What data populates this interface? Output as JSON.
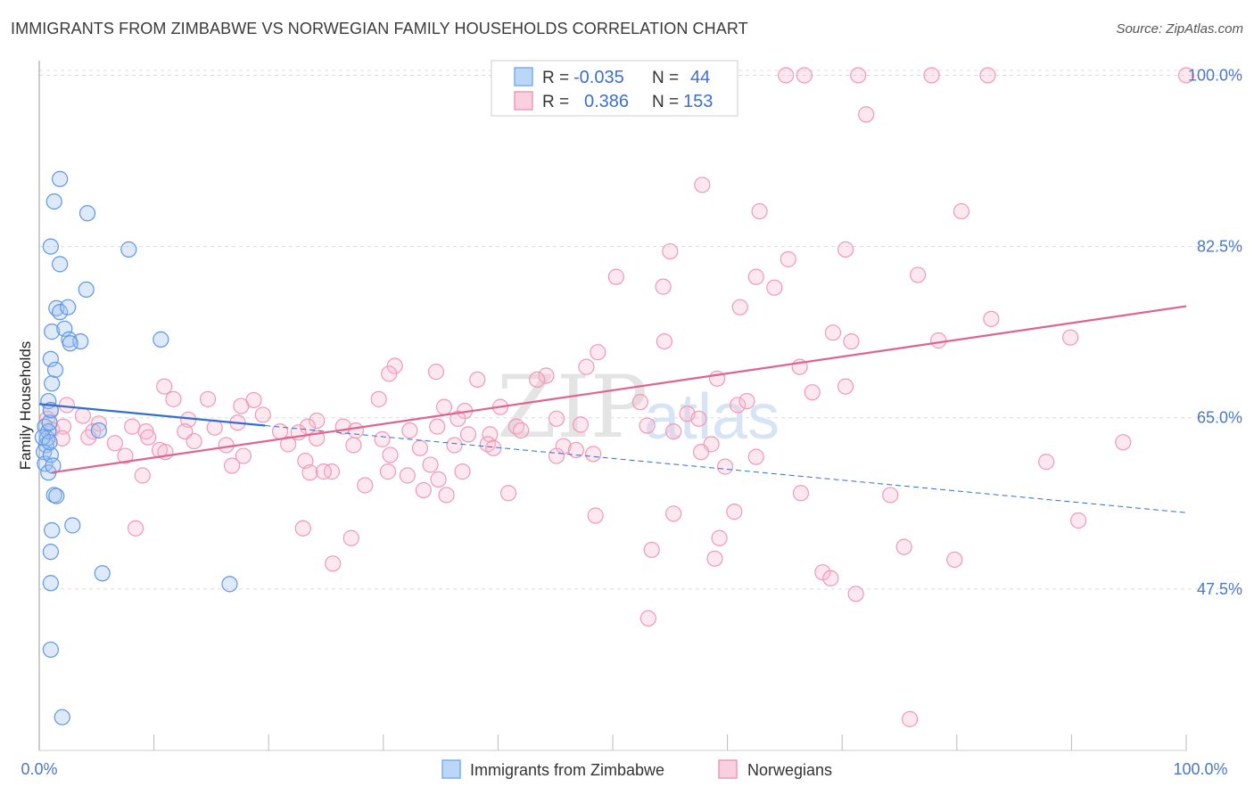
{
  "title": "IMMIGRANTS FROM ZIMBABWE VS NORWEGIAN FAMILY HOUSEHOLDS CORRELATION CHART",
  "source": "Source: ZipAtlas.com",
  "watermark": {
    "part1": "ZIP",
    "part2": "atlas"
  },
  "colors": {
    "blue": "#7aaef0",
    "blue_line": "#2f6fd2",
    "pink": "#f09ab5",
    "pink_line": "#e0628f",
    "tick_text": "#4a78c8"
  },
  "legend_top": {
    "rows": [
      {
        "r_label": "R =",
        "r_value": "-0.035",
        "n_label": "N =",
        "n_value": "44",
        "swatch": "blue"
      },
      {
        "r_label": "R =",
        "r_value": "0.386",
        "n_label": "N =",
        "n_value": "153",
        "swatch": "pink"
      }
    ]
  },
  "legend_bottom": [
    {
      "label": "Immigrants from Zimbabwe",
      "swatch": "blue"
    },
    {
      "label": "Norwegians",
      "swatch": "pink"
    }
  ],
  "chart_data": {
    "type": "scatter",
    "title": "IMMIGRANTS FROM ZIMBABWE VS NORWEGIAN FAMILY HOUSEHOLDS CORRELATION CHART",
    "xlabel": "",
    "ylabel": "Family Households",
    "xlim": [
      0,
      100
    ],
    "ylim": [
      31,
      101.5
    ],
    "x_tick_labels": [
      "0.0%",
      "100.0%"
    ],
    "y_ticks": [
      47.5,
      65.0,
      82.5,
      100.0
    ],
    "y_tick_labels": [
      "47.5%",
      "65.0%",
      "82.5%",
      "100.0%"
    ],
    "grid": true,
    "legend_position": "top-center",
    "series": [
      {
        "name": "Immigrants from Zimbabwe",
        "color": "#7aaef0",
        "points": [
          [
            0.5,
            64.1
          ],
          [
            0.6,
            62.2
          ],
          [
            0.7,
            62.9
          ],
          [
            0.8,
            63.6
          ],
          [
            0.3,
            63.0
          ],
          [
            0.4,
            61.5
          ],
          [
            0.5,
            60.3
          ],
          [
            0.8,
            59.4
          ],
          [
            0.9,
            64.5
          ],
          [
            1.0,
            61.2
          ],
          [
            0.9,
            62.5
          ],
          [
            1.2,
            60.1
          ],
          [
            1.3,
            57.1
          ],
          [
            1.5,
            57.0
          ],
          [
            1.1,
            53.5
          ],
          [
            1.0,
            51.3
          ],
          [
            1.0,
            48.1
          ],
          [
            1.0,
            41.3
          ],
          [
            2.0,
            34.4
          ],
          [
            1.8,
            89.4
          ],
          [
            1.3,
            87.1
          ],
          [
            1.0,
            82.5
          ],
          [
            1.8,
            80.7
          ],
          [
            4.2,
            85.9
          ],
          [
            7.8,
            82.2
          ],
          [
            4.1,
            78.1
          ],
          [
            1.5,
            76.2
          ],
          [
            1.8,
            75.8
          ],
          [
            2.5,
            76.3
          ],
          [
            1.1,
            73.8
          ],
          [
            2.2,
            74.1
          ],
          [
            2.6,
            73.0
          ],
          [
            3.6,
            72.8
          ],
          [
            2.7,
            72.6
          ],
          [
            1.0,
            71.0
          ],
          [
            1.4,
            69.9
          ],
          [
            1.1,
            68.5
          ],
          [
            10.6,
            73.0
          ],
          [
            0.8,
            66.7
          ],
          [
            1.0,
            65.8
          ],
          [
            5.2,
            63.7
          ],
          [
            2.9,
            54.0
          ],
          [
            5.5,
            49.1
          ],
          [
            16.6,
            48.0
          ]
        ],
        "trend_solid": [
          [
            0,
            66.4
          ],
          [
            19.7,
            64.2
          ]
        ],
        "trend_dashed": [
          [
            19.7,
            64.2
          ],
          [
            100,
            55.3
          ]
        ]
      },
      {
        "name": "Norwegians",
        "color": "#f09ab5",
        "points": [
          [
            65.1,
            100.0
          ],
          [
            66.7,
            100.0
          ],
          [
            71.4,
            100.0
          ],
          [
            77.8,
            100.0
          ],
          [
            82.7,
            100.0
          ],
          [
            100.0,
            100.0
          ],
          [
            72.1,
            96.0
          ],
          [
            57.8,
            88.8
          ],
          [
            62.8,
            86.1
          ],
          [
            80.4,
            86.1
          ],
          [
            55.0,
            82.0
          ],
          [
            70.3,
            82.2
          ],
          [
            50.3,
            79.4
          ],
          [
            62.5,
            79.4
          ],
          [
            65.3,
            81.2
          ],
          [
            76.6,
            79.6
          ],
          [
            54.4,
            78.4
          ],
          [
            64.1,
            78.3
          ],
          [
            61.1,
            76.3
          ],
          [
            83.0,
            75.1
          ],
          [
            69.2,
            73.7
          ],
          [
            70.8,
            72.8
          ],
          [
            89.9,
            73.2
          ],
          [
            54.5,
            72.8
          ],
          [
            78.4,
            72.9
          ],
          [
            48.7,
            71.7
          ],
          [
            31.0,
            70.3
          ],
          [
            47.7,
            70.2
          ],
          [
            66.3,
            70.2
          ],
          [
            34.6,
            69.7
          ],
          [
            30.5,
            69.5
          ],
          [
            44.2,
            69.3
          ],
          [
            59.1,
            69.0
          ],
          [
            38.2,
            68.9
          ],
          [
            43.4,
            68.9
          ],
          [
            10.9,
            68.2
          ],
          [
            70.3,
            68.2
          ],
          [
            67.4,
            67.6
          ],
          [
            11.7,
            66.9
          ],
          [
            14.7,
            66.9
          ],
          [
            29.6,
            66.9
          ],
          [
            52.4,
            66.6
          ],
          [
            18.7,
            66.8
          ],
          [
            2.4,
            66.3
          ],
          [
            40.2,
            66.1
          ],
          [
            35.3,
            66.1
          ],
          [
            60.9,
            66.3
          ],
          [
            61.7,
            66.7
          ],
          [
            17.6,
            66.2
          ],
          [
            1.0,
            65.7
          ],
          [
            3.8,
            65.2
          ],
          [
            19.5,
            65.3
          ],
          [
            37.1,
            65.7
          ],
          [
            56.5,
            65.4
          ],
          [
            0.7,
            64.9
          ],
          [
            5.2,
            64.4
          ],
          [
            13.0,
            64.8
          ],
          [
            17.3,
            64.5
          ],
          [
            24.2,
            64.7
          ],
          [
            36.5,
            64.9
          ],
          [
            45.1,
            64.9
          ],
          [
            57.5,
            64.9
          ],
          [
            2.1,
            64.1
          ],
          [
            8.1,
            64.1
          ],
          [
            15.3,
            64.0
          ],
          [
            23.4,
            64.1
          ],
          [
            26.5,
            64.1
          ],
          [
            41.6,
            64.1
          ],
          [
            47.2,
            64.3
          ],
          [
            34.7,
            64.1
          ],
          [
            53.0,
            64.2
          ],
          [
            1.1,
            63.8
          ],
          [
            4.7,
            63.6
          ],
          [
            9.3,
            63.6
          ],
          [
            12.7,
            63.6
          ],
          [
            21.0,
            63.6
          ],
          [
            22.6,
            63.5
          ],
          [
            27.6,
            63.7
          ],
          [
            32.3,
            63.7
          ],
          [
            39.3,
            63.3
          ],
          [
            42.0,
            63.7
          ],
          [
            55.3,
            63.6
          ],
          [
            2.0,
            62.9
          ],
          [
            4.3,
            63.0
          ],
          [
            9.5,
            63.0
          ],
          [
            13.5,
            62.6
          ],
          [
            21.7,
            62.3
          ],
          [
            24.2,
            62.9
          ],
          [
            29.9,
            62.8
          ],
          [
            37.4,
            63.3
          ],
          [
            39.1,
            62.3
          ],
          [
            45.7,
            62.1
          ],
          [
            58.6,
            62.3
          ],
          [
            94.5,
            62.5
          ],
          [
            6.6,
            62.4
          ],
          [
            10.5,
            61.7
          ],
          [
            16.3,
            62.2
          ],
          [
            27.4,
            62.2
          ],
          [
            33.2,
            61.9
          ],
          [
            36.2,
            62.2
          ],
          [
            39.6,
            61.9
          ],
          [
            46.8,
            61.7
          ],
          [
            62.5,
            61.0
          ],
          [
            7.5,
            61.1
          ],
          [
            11.0,
            61.5
          ],
          [
            17.8,
            61.1
          ],
          [
            30.6,
            61.2
          ],
          [
            48.3,
            61.3
          ],
          [
            57.7,
            61.5
          ],
          [
            16.8,
            60.1
          ],
          [
            23.2,
            60.6
          ],
          [
            25.5,
            59.5
          ],
          [
            30.4,
            59.5
          ],
          [
            34.1,
            60.2
          ],
          [
            36.9,
            59.5
          ],
          [
            45.1,
            61.1
          ],
          [
            59.8,
            60.0
          ],
          [
            87.8,
            60.5
          ],
          [
            9.0,
            59.1
          ],
          [
            23.6,
            59.4
          ],
          [
            24.8,
            59.5
          ],
          [
            32.1,
            59.1
          ],
          [
            34.8,
            58.7
          ],
          [
            28.4,
            58.1
          ],
          [
            33.5,
            57.6
          ],
          [
            40.9,
            57.3
          ],
          [
            35.5,
            57.1
          ],
          [
            66.4,
            57.3
          ],
          [
            74.2,
            57.1
          ],
          [
            60.6,
            55.4
          ],
          [
            55.3,
            55.2
          ],
          [
            48.5,
            55.0
          ],
          [
            90.6,
            54.5
          ],
          [
            8.4,
            53.7
          ],
          [
            23.0,
            53.7
          ],
          [
            27.2,
            52.7
          ],
          [
            59.3,
            52.7
          ],
          [
            53.4,
            51.5
          ],
          [
            58.9,
            50.6
          ],
          [
            68.3,
            49.2
          ],
          [
            71.2,
            47.0
          ],
          [
            69.0,
            48.6
          ],
          [
            25.6,
            50.1
          ],
          [
            79.8,
            50.5
          ],
          [
            75.4,
            51.8
          ],
          [
            53.1,
            44.5
          ],
          [
            75.9,
            34.2
          ]
        ],
        "trend_solid": [
          [
            1.1,
            59.4
          ],
          [
            100,
            76.4
          ]
        ]
      }
    ]
  }
}
